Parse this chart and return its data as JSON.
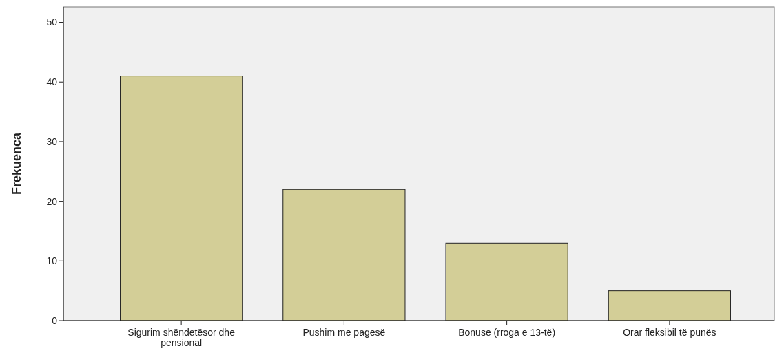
{
  "chart_data": {
    "type": "bar",
    "ylabel": "Frekuenca",
    "categories": [
      "Sigurim shëndetësor dhe pensional",
      "Pushim me pagesë",
      "Bonuse (rroga e 13-të)",
      "Orar fleksibil të punës"
    ],
    "values": [
      41,
      22,
      13,
      5
    ],
    "color": "#d3ce97",
    "ylim": [
      0,
      52.6
    ],
    "yticks": [
      0,
      10,
      20,
      30,
      40,
      50
    ],
    "grid": false
  }
}
